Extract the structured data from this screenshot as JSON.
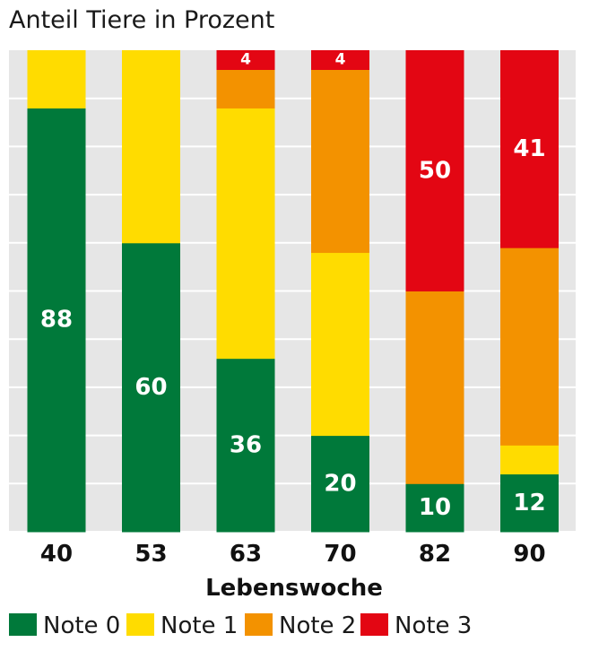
{
  "chart_data": {
    "type": "bar",
    "stacked": true,
    "orientation": "vertical",
    "title": "Anteil Tiere in Prozent",
    "xlabel": "Lebenswoche",
    "ylabel": "",
    "ylim": [
      0,
      100
    ],
    "grid": "horizontal",
    "legend": "bottom",
    "categories": [
      "40",
      "53",
      "63",
      "70",
      "82",
      "90"
    ],
    "series": [
      {
        "name": "Note 0",
        "color": "#00793a",
        "values": [
          88,
          60,
          36,
          20,
          10,
          12
        ]
      },
      {
        "name": "Note 1",
        "color": "#ffdc00",
        "values": [
          12,
          40,
          52,
          38,
          0,
          6
        ]
      },
      {
        "name": "Note 2",
        "color": "#f39200",
        "values": [
          0,
          0,
          8,
          38,
          40,
          41
        ]
      },
      {
        "name": "Note 3",
        "color": "#e30613",
        "values": [
          0,
          0,
          4,
          4,
          50,
          41
        ]
      }
    ],
    "data_labels": [
      [
        88,
        60,
        36,
        20,
        10,
        12
      ],
      [
        null,
        null,
        null,
        null,
        null,
        null
      ],
      [
        null,
        null,
        null,
        null,
        null,
        null
      ],
      [
        null,
        null,
        4,
        4,
        50,
        41
      ]
    ]
  }
}
